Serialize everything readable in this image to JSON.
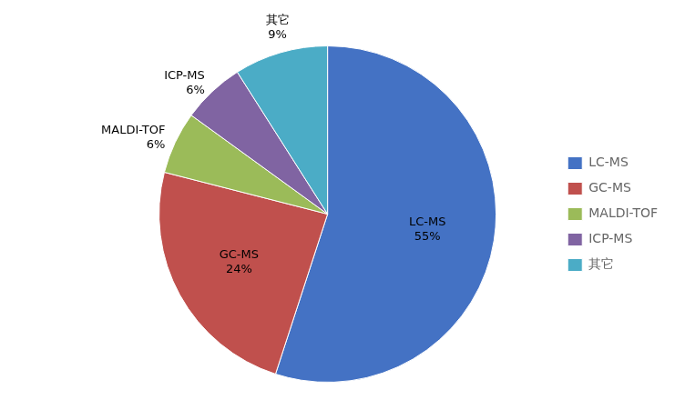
{
  "chart_data": {
    "type": "pie",
    "categories": [
      "LC-MS",
      "GC-MS",
      "MALDI-TOF",
      "ICP-MS",
      "其它"
    ],
    "values": [
      55,
      24,
      6,
      6,
      9
    ],
    "value_labels": [
      "55%",
      "24%",
      "6%",
      "6%",
      "9%"
    ],
    "colors": [
      "#4472C4",
      "#C0504D",
      "#9BBB59",
      "#8064A2",
      "#4BACC6"
    ],
    "data_labels": true,
    "legend": "right"
  }
}
